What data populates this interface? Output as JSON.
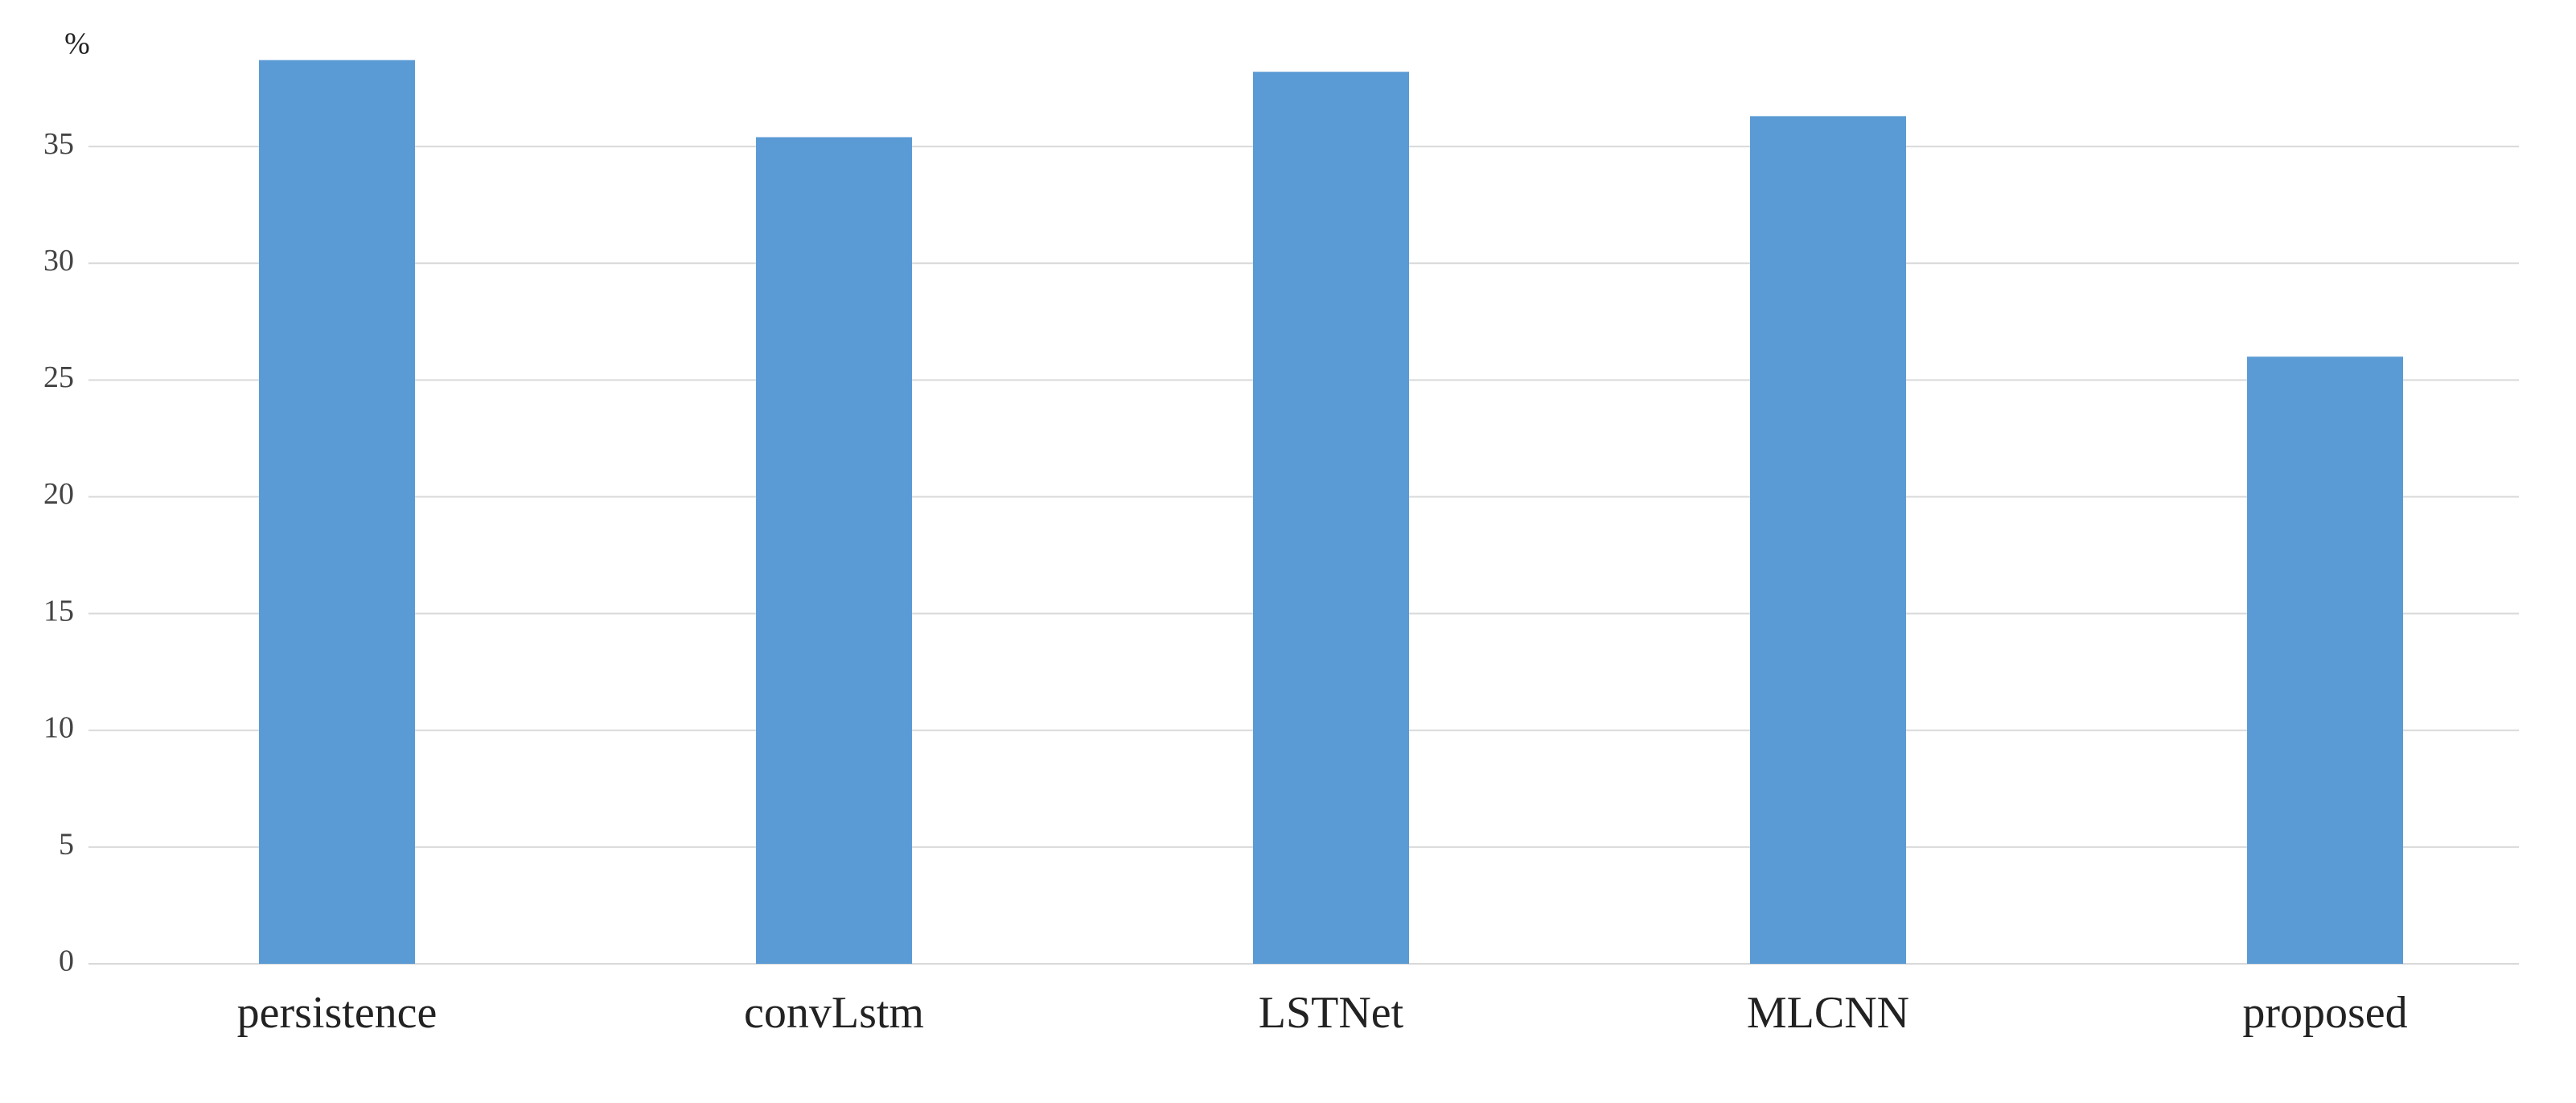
{
  "chart_data": {
    "type": "bar",
    "y_label": "%",
    "categories": [
      "persistence",
      "convLstm",
      "LSTNet",
      "MLCNN",
      "proposed"
    ],
    "values": [
      38.7,
      35.4,
      38.2,
      36.3,
      26.0
    ],
    "color": "#5b9bd5",
    "ylim": [
      0,
      39
    ],
    "yticks": [
      0,
      5,
      10,
      15,
      20,
      25,
      30,
      35
    ],
    "grid": true
  }
}
